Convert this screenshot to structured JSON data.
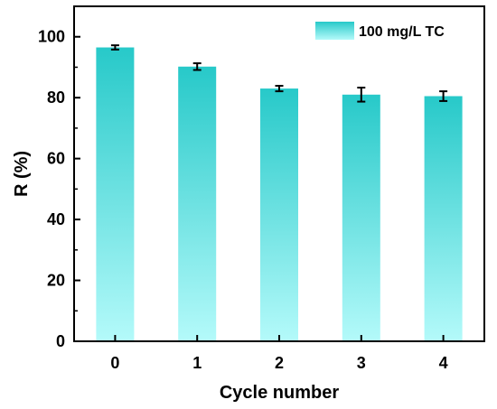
{
  "chart_data": {
    "type": "bar",
    "categories": [
      "0",
      "1",
      "2",
      "3",
      "4"
    ],
    "series": [
      {
        "name": "100 mg/L TC",
        "values": [
          96.5,
          90.2,
          83.0,
          81.0,
          80.5
        ],
        "errors": [
          0.7,
          1.1,
          0.9,
          2.3,
          1.6
        ]
      }
    ],
    "xlabel": "Cycle number",
    "ylabel": "R (%)",
    "ylim": [
      0,
      110
    ],
    "yticks": [
      0,
      20,
      40,
      60,
      80,
      100
    ],
    "grid": false,
    "legend_position": "top-right",
    "colors": {
      "bar_top": "#27c9c9",
      "bar_bottom": "#b4fafa",
      "axis": "#000000"
    }
  }
}
